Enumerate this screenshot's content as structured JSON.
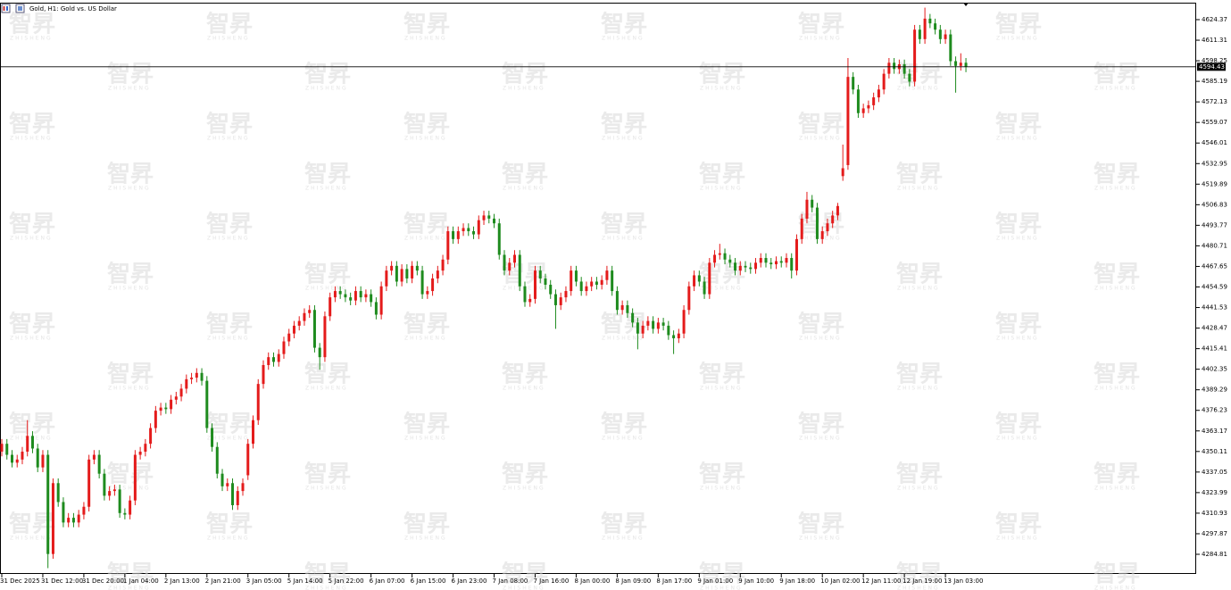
{
  "chart_data": {
    "type": "candlestick",
    "title": "Gold, H1:  Gold vs. US Dollar",
    "watermark": {
      "mark": "智昇",
      "sub": "ZHISHENG"
    },
    "up_color": "#e41b1b",
    "down_color": "#1e8b1e",
    "price_line": true,
    "ylim": [
      4272.34,
      4636.84
    ],
    "yticks": [
      4624.37,
      4611.31,
      4598.25,
      4585.19,
      4572.13,
      4559.07,
      4546.01,
      4532.95,
      4519.89,
      4506.83,
      4493.77,
      4480.71,
      4467.65,
      4454.59,
      4441.53,
      4428.47,
      4415.41,
      4402.35,
      4389.29,
      4376.23,
      4363.17,
      4350.11,
      4337.05,
      4323.99,
      4310.93,
      4297.87,
      4284.81
    ],
    "categories": [
      "31 Dec 2025",
      null,
      null,
      null,
      null,
      null,
      null,
      null,
      "31 Dec 12:00",
      null,
      null,
      null,
      null,
      null,
      null,
      null,
      "31 Dec 20:00",
      null,
      null,
      null,
      null,
      null,
      null,
      null,
      "1 Jan 04:00",
      null,
      null,
      null,
      null,
      null,
      null,
      null,
      "2 Jan 13:00",
      null,
      null,
      null,
      null,
      null,
      null,
      null,
      "2 Jan 21:00",
      null,
      null,
      null,
      null,
      null,
      null,
      null,
      "3 Jan 05:00",
      null,
      null,
      null,
      null,
      null,
      null,
      null,
      "5 Jan 14:00",
      null,
      null,
      null,
      null,
      null,
      null,
      null,
      "5 Jan 22:00",
      null,
      null,
      null,
      null,
      null,
      null,
      null,
      "6 Jan 07:00",
      null,
      null,
      null,
      null,
      null,
      null,
      null,
      "6 Jan 15:00",
      null,
      null,
      null,
      null,
      null,
      null,
      null,
      "6 Jan 23:00",
      null,
      null,
      null,
      null,
      null,
      null,
      null,
      "7 Jan 08:00",
      null,
      null,
      null,
      null,
      null,
      null,
      null,
      "7 Jan 16:00",
      null,
      null,
      null,
      null,
      null,
      null,
      null,
      "8 Jan 00:00",
      null,
      null,
      null,
      null,
      null,
      null,
      null,
      "8 Jan 09:00",
      null,
      null,
      null,
      null,
      null,
      null,
      null,
      "8 Jan 17:00",
      null,
      null,
      null,
      null,
      null,
      null,
      null,
      "9 Jan 01:00",
      null,
      null,
      null,
      null,
      null,
      null,
      null,
      "9 Jan 10:00",
      null,
      null,
      null,
      null,
      null,
      null,
      null,
      "9 Jan 18:00",
      null,
      null,
      null,
      null,
      null,
      null,
      null,
      "10 Jan 02:00",
      null,
      null,
      null,
      null,
      null,
      null,
      null,
      "12 Jan 11:00",
      null,
      null,
      null,
      null,
      null,
      null,
      null,
      "12 Jan 19:00",
      null,
      null,
      null,
      null,
      null,
      null,
      null,
      "13 Jan 03:00",
      null,
      null,
      null,
      null
    ],
    "open": [
      4350,
      4355,
      4348,
      4343,
      4345,
      4350,
      4360,
      4352,
      4340,
      4348,
      4285,
      4330,
      4318,
      4305,
      4308,
      4305,
      4310,
      4315,
      4345,
      4348,
      4336,
      4322,
      4325,
      4326,
      4311,
      4310,
      4319,
      4348,
      4350,
      4355,
      4365,
      4376,
      4378,
      4377,
      4383,
      4385,
      4390,
      4396,
      4397,
      4400,
      4395,
      4365,
      4353,
      4336,
      4328,
      4330,
      4316,
      4325,
      4335,
      4355,
      4370,
      4393,
      4405,
      4410,
      4407,
      4412,
      4420,
      4425,
      4430,
      4433,
      4438,
      4440,
      4416,
      4410,
      4436,
      4448,
      4452,
      4450,
      4448,
      4446,
      4452,
      4448,
      4450,
      4445,
      4437,
      4455,
      4465,
      4468,
      4458,
      4466,
      4460,
      4468,
      4465,
      4450,
      4452,
      4460,
      4465,
      4472,
      4490,
      4485,
      4490,
      4492,
      4490,
      4488,
      4497,
      4500,
      4498,
      4495,
      4475,
      4465,
      4470,
      4475,
      4455,
      4445,
      4447,
      4465,
      4460,
      4456,
      4450,
      4443,
      4448,
      4452,
      4465,
      4458,
      4452,
      4455,
      4458,
      4456,
      4459,
      4465,
      4452,
      4440,
      4443,
      4438,
      4432,
      4425,
      4430,
      4433,
      4428,
      4432,
      4430,
      4424,
      4422,
      4425,
      4440,
      4455,
      4462,
      4458,
      4450,
      4470,
      4475,
      4476,
      4472,
      4470,
      4465,
      4468,
      4467,
      4466,
      4470,
      4473,
      4470,
      4469,
      4471,
      4470,
      4473,
      4465,
      4485,
      4498,
      4510,
      4505,
      4485,
      4490,
      4495,
      4500,
      4525,
      4532,
      4588,
      4580,
      4565,
      4568,
      4570,
      4575,
      4580,
      4590,
      4597,
      4593,
      4596,
      4590,
      4585,
      4618,
      4612,
      4625,
      4622,
      4618,
      4612,
      4615,
      4598,
      4595,
      4597
    ],
    "high": [
      4358,
      4358,
      4351,
      4348,
      4353,
      4370,
      4363,
      4355,
      4351,
      4351,
      4333,
      4333,
      4321,
      4311,
      4311,
      4313,
      4318,
      4348,
      4351,
      4351,
      4339,
      4328,
      4329,
      4329,
      4314,
      4322,
      4351,
      4353,
      4358,
      4368,
      4379,
      4381,
      4381,
      4386,
      4388,
      4393,
      4399,
      4400,
      4403,
      4403,
      4398,
      4368,
      4356,
      4339,
      4333,
      4333,
      4328,
      4333,
      4358,
      4373,
      4396,
      4408,
      4413,
      4413,
      4415,
      4423,
      4428,
      4433,
      4436,
      4441,
      4443,
      4443,
      4419,
      4439,
      4451,
      4455,
      4455,
      4453,
      4451,
      4455,
      4455,
      4453,
      4453,
      4448,
      4458,
      4468,
      4471,
      4471,
      4469,
      4469,
      4471,
      4471,
      4468,
      4455,
      4463,
      4468,
      4475,
      4493,
      4493,
      4493,
      4495,
      4495,
      4493,
      4500,
      4503,
      4503,
      4501,
      4498,
      4478,
      4473,
      4478,
      4478,
      4458,
      4450,
      4468,
      4468,
      4463,
      4459,
      4453,
      4451,
      4455,
      4468,
      4468,
      4461,
      4458,
      4461,
      4461,
      4462,
      4468,
      4468,
      4455,
      4446,
      4446,
      4441,
      4435,
      4433,
      4436,
      4436,
      4435,
      4435,
      4433,
      4427,
      4428,
      4443,
      4458,
      4465,
      4465,
      4461,
      4473,
      4478,
      4482,
      4479,
      4475,
      4473,
      4471,
      4471,
      4470,
      4473,
      4476,
      4476,
      4473,
      4474,
      4474,
      4476,
      4476,
      4488,
      4501,
      4515,
      4513,
      4508,
      4493,
      4498,
      4503,
      4508,
      4545,
      4600,
      4591,
      4583,
      4571,
      4573,
      4578,
      4583,
      4593,
      4600,
      4600,
      4599,
      4599,
      4593,
      4621,
      4621,
      4632,
      4628,
      4625,
      4621,
      4618,
      4618,
      4601,
      4603,
      4600
    ],
    "low": [
      4347,
      4345,
      4340,
      4340,
      4342,
      4347,
      4349,
      4337,
      4337,
      4276,
      4282,
      4315,
      4302,
      4302,
      4302,
      4302,
      4307,
      4312,
      4342,
      4333,
      4319,
      4319,
      4322,
      4308,
      4307,
      4307,
      4316,
      4345,
      4347,
      4352,
      4362,
      4373,
      4374,
      4374,
      4380,
      4382,
      4387,
      4393,
      4394,
      4392,
      4362,
      4350,
      4333,
      4325,
      4325,
      4313,
      4313,
      4322,
      4332,
      4352,
      4367,
      4390,
      4402,
      4404,
      4404,
      4409,
      4417,
      4422,
      4427,
      4430,
      4435,
      4413,
      4402,
      4407,
      4433,
      4445,
      4447,
      4445,
      4443,
      4443,
      4445,
      4445,
      4442,
      4434,
      4434,
      4452,
      4462,
      4455,
      4455,
      4457,
      4457,
      4462,
      4447,
      4447,
      4449,
      4457,
      4462,
      4469,
      4482,
      4482,
      4487,
      4487,
      4485,
      4485,
      4494,
      4495,
      4492,
      4472,
      4462,
      4462,
      4467,
      4452,
      4442,
      4442,
      4444,
      4457,
      4453,
      4447,
      4428,
      4440,
      4445,
      4449,
      4455,
      4449,
      4449,
      4452,
      4453,
      4453,
      4456,
      4449,
      4437,
      4437,
      4435,
      4429,
      4415,
      4422,
      4427,
      4425,
      4425,
      4427,
      4421,
      4412,
      4419,
      4422,
      4437,
      4452,
      4455,
      4447,
      4447,
      4467,
      4472,
      4469,
      4467,
      4462,
      4462,
      4464,
      4463,
      4463,
      4467,
      4467,
      4466,
      4466,
      4467,
      4467,
      4460,
      4462,
      4482,
      4495,
      4502,
      4482,
      4482,
      4487,
      4492,
      4497,
      4522,
      4529,
      4577,
      4562,
      4562,
      4565,
      4567,
      4572,
      4577,
      4587,
      4590,
      4590,
      4587,
      4582,
      4582,
      4609,
      4609,
      4619,
      4615,
      4609,
      4609,
      4595,
      4578,
      4592,
      4591
    ],
    "close": [
      4355,
      4348,
      4343,
      4345,
      4350,
      4360,
      4352,
      4340,
      4348,
      4285,
      4330,
      4318,
      4305,
      4308,
      4305,
      4310,
      4315,
      4345,
      4348,
      4336,
      4322,
      4325,
      4326,
      4311,
      4310,
      4319,
      4348,
      4350,
      4355,
      4365,
      4376,
      4378,
      4377,
      4383,
      4385,
      4390,
      4396,
      4397,
      4400,
      4395,
      4365,
      4353,
      4336,
      4328,
      4330,
      4316,
      4325,
      4330,
      4355,
      4370,
      4393,
      4405,
      4410,
      4407,
      4412,
      4420,
      4425,
      4430,
      4433,
      4438,
      4440,
      4416,
      4410,
      4436,
      4448,
      4452,
      4450,
      4448,
      4446,
      4452,
      4448,
      4450,
      4445,
      4437,
      4455,
      4465,
      4468,
      4458,
      4466,
      4460,
      4468,
      4465,
      4450,
      4452,
      4460,
      4465,
      4472,
      4490,
      4485,
      4490,
      4492,
      4490,
      4488,
      4497,
      4500,
      4498,
      4495,
      4475,
      4465,
      4470,
      4475,
      4455,
      4445,
      4447,
      4465,
      4460,
      4456,
      4450,
      4443,
      4448,
      4452,
      4465,
      4458,
      4452,
      4455,
      4458,
      4456,
      4459,
      4465,
      4452,
      4440,
      4443,
      4438,
      4432,
      4425,
      4430,
      4433,
      4428,
      4432,
      4430,
      4424,
      4422,
      4425,
      4440,
      4455,
      4462,
      4458,
      4450,
      4470,
      4475,
      4476,
      4472,
      4470,
      4465,
      4468,
      4467,
      4466,
      4470,
      4473,
      4470,
      4469,
      4471,
      4470,
      4473,
      4465,
      4485,
      4498,
      4510,
      4505,
      4485,
      4490,
      4495,
      4500,
      4506,
      4530,
      4588,
      4580,
      4565,
      4568,
      4570,
      4575,
      4580,
      4590,
      4597,
      4593,
      4596,
      4590,
      4585,
      4618,
      4612,
      4625,
      4622,
      4618,
      4612,
      4615,
      4598,
      4595,
      4597,
      4594.43
    ]
  }
}
